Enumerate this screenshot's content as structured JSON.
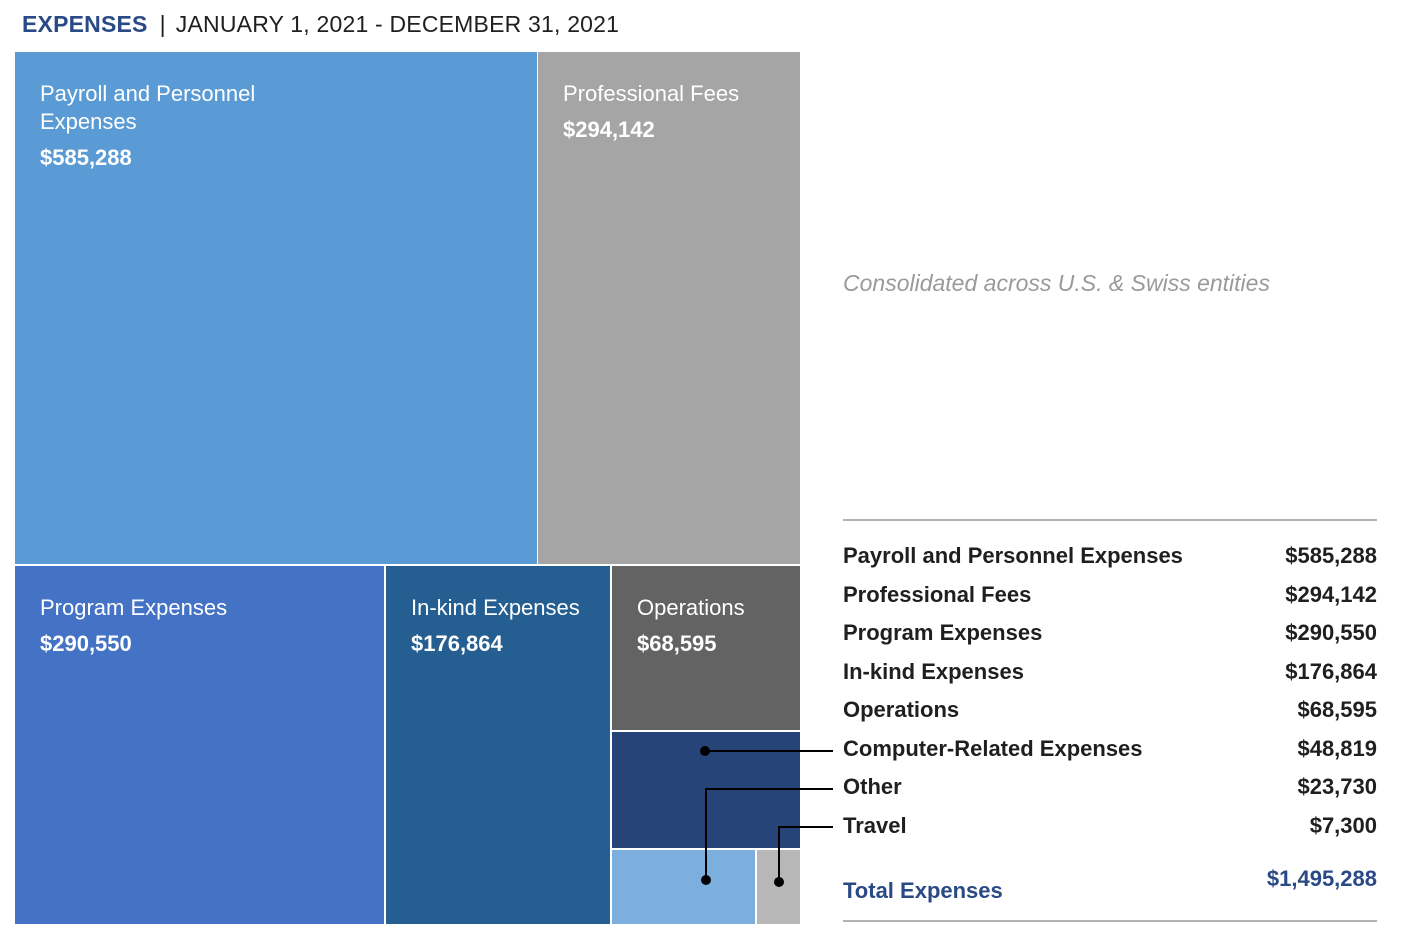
{
  "header": {
    "title": "EXPENSES",
    "separator": "|",
    "period": "JANUARY 1, 2021 - DECEMBER 31, 2021"
  },
  "subtitle": "Consolidated across U.S. & Swiss entities",
  "colors": {
    "payroll": "#5b9bd5",
    "professional_fees": "#a5a5a5",
    "program": "#4472c4",
    "in_kind": "#255e91",
    "operations": "#636363",
    "computer": "#264478",
    "other": "#7cafdd",
    "travel": "#b7b7b7",
    "title_blue": "#2a4a86"
  },
  "chart_data": {
    "type": "treemap",
    "items": [
      {
        "name": "Payroll and Personnel Expenses",
        "label_lines": [
          "Payroll and Personnel",
          "Expenses"
        ],
        "value": 585288,
        "value_label": "$585,288",
        "color_key": "payroll"
      },
      {
        "name": "Professional Fees",
        "label_lines": [
          "Professional Fees"
        ],
        "value": 294142,
        "value_label": "$294,142",
        "color_key": "professional_fees"
      },
      {
        "name": "Program Expenses",
        "label_lines": [
          "Program Expenses"
        ],
        "value": 290550,
        "value_label": "$290,550",
        "color_key": "program"
      },
      {
        "name": "In-kind Expenses",
        "label_lines": [
          "In-kind Expenses"
        ],
        "value": 176864,
        "value_label": "$176,864",
        "color_key": "in_kind"
      },
      {
        "name": "Operations",
        "label_lines": [
          "Operations"
        ],
        "value": 68595,
        "value_label": "$68,595",
        "color_key": "operations"
      },
      {
        "name": "Computer-Related Expenses",
        "label_lines": [],
        "value": 48819,
        "value_label": "$48,819",
        "color_key": "computer"
      },
      {
        "name": "Other",
        "label_lines": [],
        "value": 23730,
        "value_label": "$23,730",
        "color_key": "other"
      },
      {
        "name": "Travel",
        "label_lines": [],
        "value": 7300,
        "value_label": "$7,300",
        "color_key": "travel"
      }
    ],
    "total": {
      "label": "Total Expenses",
      "value": 1495288,
      "value_label": "$1,495,288"
    }
  },
  "table": {
    "rows": [
      {
        "label": "Payroll and Personnel Expenses",
        "value": "$585,288"
      },
      {
        "label": "Professional Fees",
        "value": "$294,142"
      },
      {
        "label": "Program Expenses",
        "value": "$290,550"
      },
      {
        "label": "In-kind Expenses",
        "value": "$176,864"
      },
      {
        "label": "Operations",
        "value": "$68,595"
      },
      {
        "label": "Computer-Related Expenses",
        "value": "$48,819"
      },
      {
        "label": "Other",
        "value": "$23,730"
      },
      {
        "label": "Travel",
        "value": "$7,300"
      }
    ],
    "total_label": "Total Expenses",
    "total_value": "$1,495,288"
  }
}
